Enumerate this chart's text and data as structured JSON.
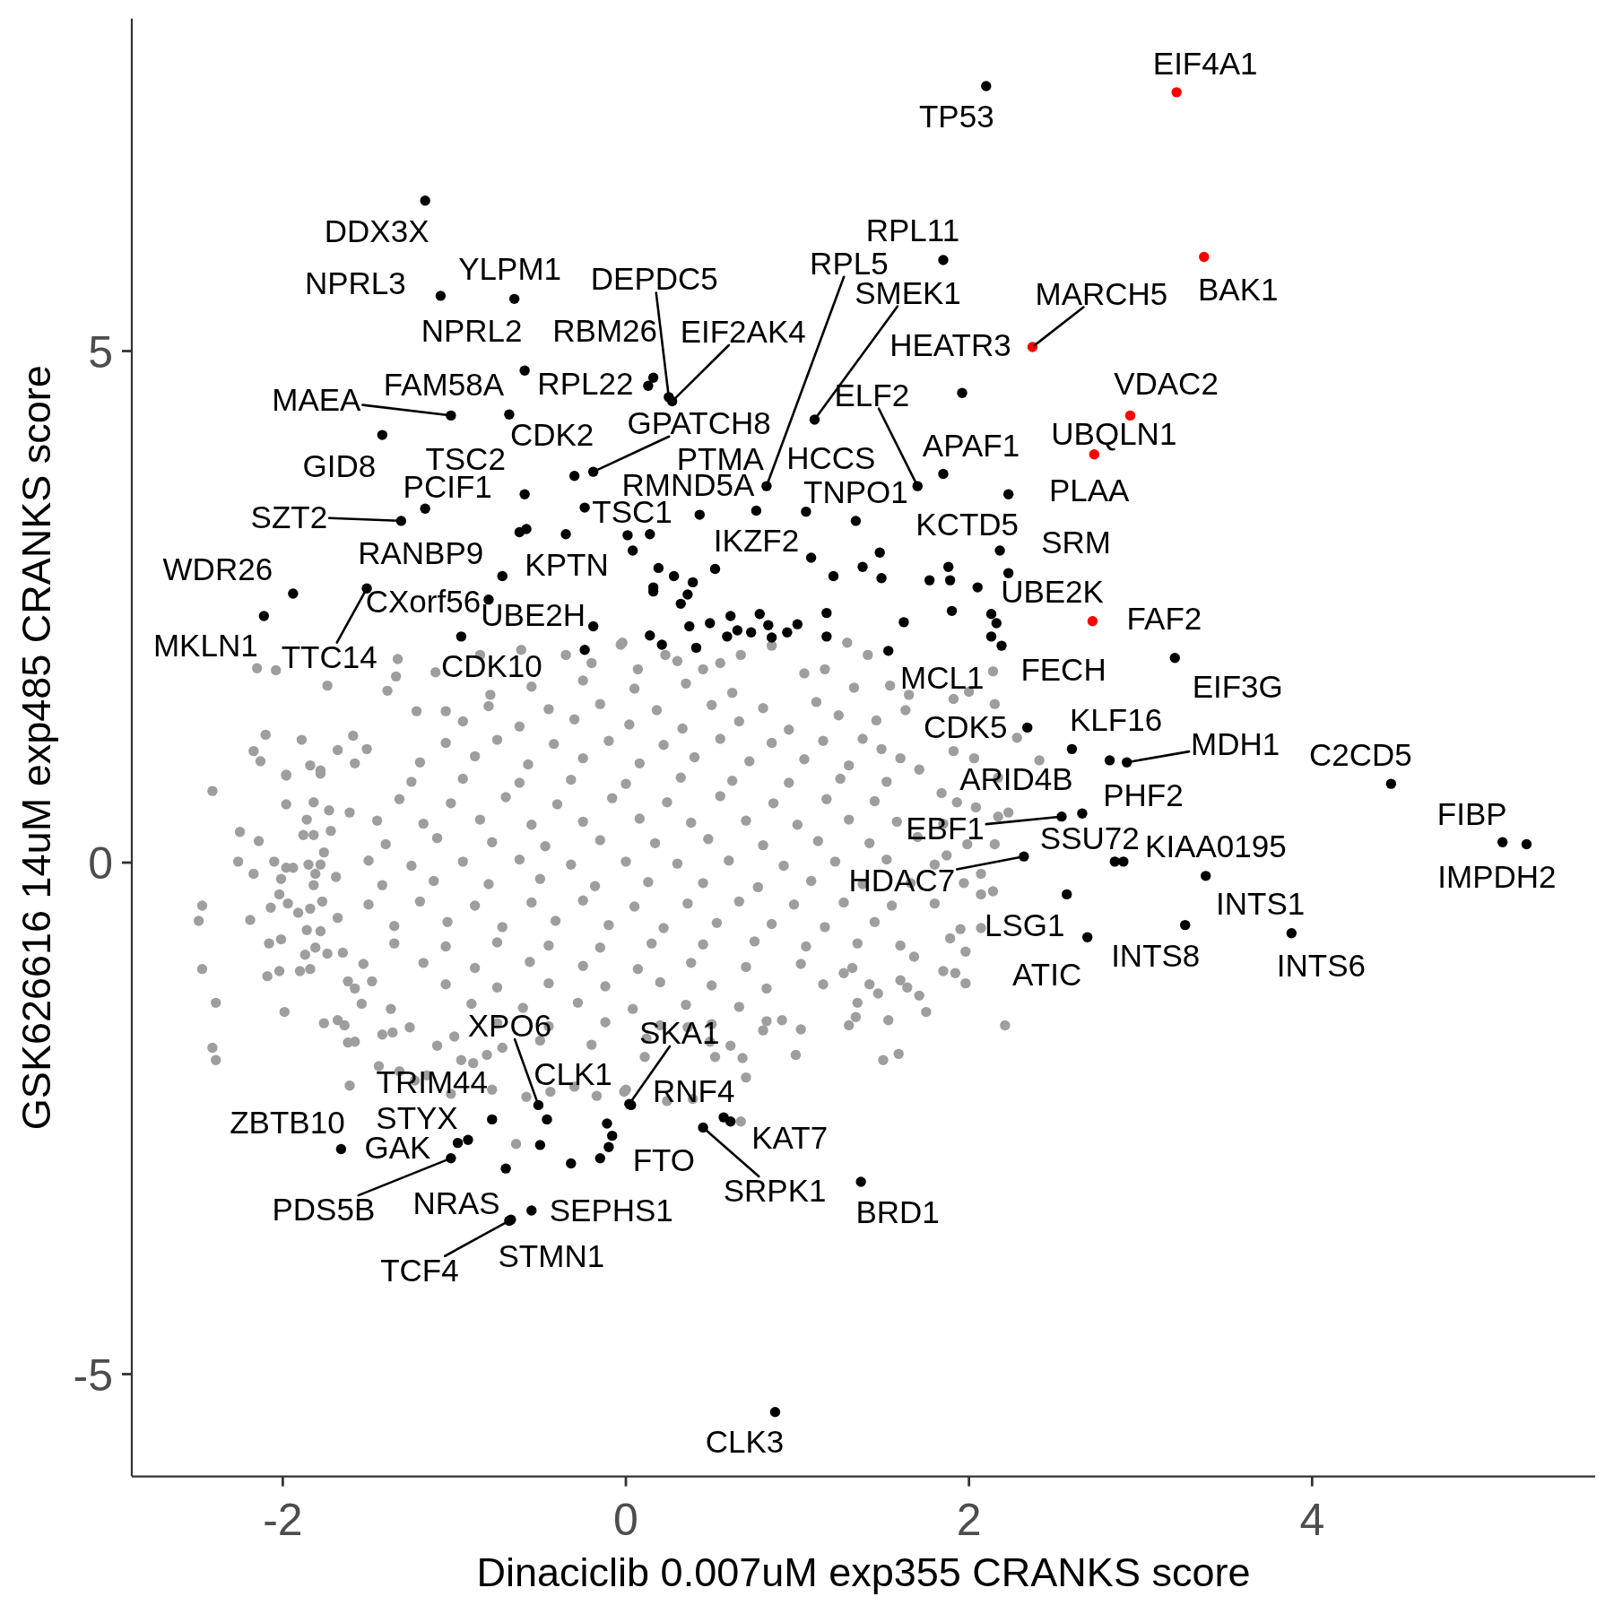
{
  "chart_data": {
    "type": "scatter",
    "xlabel": "Dinaciclib 0.007uM exp355 CRANKS score",
    "ylabel": "GSK626616 14uM exp485 CRANKS score",
    "xlim": [
      -2.88,
      5.65
    ],
    "ylim": [
      -6.0,
      8.25
    ],
    "xticks": [
      -2,
      0,
      2,
      4
    ],
    "yticks": [
      -5,
      0,
      5
    ],
    "marker": "circle",
    "series": [
      {
        "color": "#9e9e9e",
        "x": [
          -2.15,
          -2.04,
          -1.74,
          -1.33,
          -1.34,
          -1.39,
          -1.11,
          -0.03,
          -0.61,
          -0.35,
          -2.1,
          -2.17,
          -2.13,
          -1.59,
          -1.89,
          -1.68,
          -1.84,
          -1.78,
          -1.98,
          -1.51,
          -1.58,
          -1.22,
          -1.05,
          -0.85,
          -0.79,
          -1.98,
          -1.78,
          -2.41,
          -1.98,
          -1.82,
          -1.73,
          -1.86,
          -2.25,
          -2.14,
          -1.88,
          -1.82,
          -1.76,
          -2.26,
          -2.17,
          -2.05,
          -1.98,
          -1.94,
          -2.01,
          -1.85,
          -1.78,
          -1.81,
          -1.82,
          -2.47,
          -2.49,
          -2.19,
          -2.02,
          -2.07,
          -1.97,
          -1.91,
          -1.84,
          -1.77,
          -1.86,
          -1.78,
          -2.08,
          -2.01,
          -1.87,
          -1.81,
          -1.74,
          -1.65,
          -2.47,
          -2.09,
          -2.02,
          -1.9,
          -1.84,
          -2.39,
          -1.99,
          -1.54,
          -1.62,
          -1.58,
          -1.76,
          -1.68,
          -1.64,
          -2.41,
          -2.39,
          -1.62,
          -1.58,
          -1.61,
          -1.42,
          -1.36,
          -1.32,
          -1.44,
          -1.23,
          -1.16,
          -0.96,
          -0.89,
          -1.02,
          -0.81,
          -0.72,
          -0.78,
          -0.64,
          -0.58,
          -0.44,
          -0.3,
          -0.17,
          -0.01,
          -1.72,
          -1.61,
          -1.69,
          -1.68,
          -1.53,
          -1.48,
          -1.37,
          -1.26,
          -1.1,
          -1.0,
          2.23,
          2.17,
          2.15,
          2.14,
          2.07,
          2.07,
          1.95,
          1.89,
          1.98,
          1.85,
          1.92,
          1.98,
          2.21,
          1.68,
          1.6,
          1.64,
          1.71,
          1.75,
          1.53,
          1.35,
          1.34,
          1.3,
          1.5,
          1.59,
          1.42,
          1.47,
          0.99,
          1.02,
          0.68,
          0.7,
          0.67,
          0.52,
          0.61,
          0.24,
          0.39,
          0.11,
          0.0,
          1.27,
          1.32,
          0.91,
          0.8,
          0.36,
          0.49,
          2.17,
          2.04,
          1.93,
          1.84,
          1.99,
          1.87,
          2.07,
          1.97,
          1.29,
          1.41,
          1.33,
          1.54,
          1.65,
          1.63,
          1.91,
          2.0,
          2.15,
          2.14,
          2.28,
          1.91,
          2.03,
          2.41,
          1.46,
          1.16,
          1.04,
          0.85,
          0.67,
          -0.02,
          0.23,
          0.45,
          0.07,
          1.11,
          1.24,
          1.38,
          1.49,
          1.6,
          1.71,
          -0.55,
          -0.25,
          0.05,
          0.35,
          0.62,
          -0.95,
          -0.62,
          -0.3,
          0.02,
          0.33,
          0.66,
          0.95,
          -1.2,
          -0.88,
          -0.57,
          -0.25,
          0.08,
          0.4,
          0.72,
          1.04,
          1.3,
          -1.32,
          -1.02,
          -0.7,
          -0.4,
          -0.08,
          0.24,
          0.55,
          0.86,
          1.17,
          1.45,
          -1.4,
          -1.1,
          -0.78,
          -0.47,
          -0.15,
          0.17,
          0.48,
          0.8,
          1.12,
          1.42,
          1.7,
          -1.42,
          -1.12,
          -0.8,
          -0.5,
          -0.18,
          0.13,
          0.45,
          0.77,
          1.08,
          1.38,
          1.66,
          -1.35,
          -1.04,
          -0.72,
          -0.41,
          -0.1,
          0.22,
          0.53,
          0.85,
          1.16,
          1.45,
          -1.18,
          -0.88,
          -0.56,
          -0.25,
          0.07,
          0.38,
          0.7,
          1.02,
          -0.9,
          -0.6,
          -0.28,
          0.04,
          0.35,
          0.66,
          -0.5,
          -0.2,
          0.12,
          0.3,
          -0.2,
          0.55,
          -0.8,
          -0.45,
          -0.15,
          0.18,
          0.5,
          0.8,
          -1.05,
          -0.75,
          -0.42,
          -0.1,
          0.22,
          0.55,
          0.85,
          1.15,
          -1.25,
          -0.95,
          -0.62,
          -0.32,
          0.0,
          0.32,
          0.62,
          0.95,
          1.25,
          1.52,
          -1.45,
          -1.18,
          -0.85,
          -0.55,
          -0.25,
          0.08,
          0.38,
          0.7,
          1.0,
          1.3,
          1.58,
          1.85,
          -1.5,
          -1.25,
          -0.95,
          -0.62,
          -0.32,
          0.0,
          0.3,
          0.6,
          0.92,
          1.22,
          1.52,
          1.8,
          -1.5,
          -1.2,
          -0.88,
          -0.55,
          -0.25,
          0.05,
          0.36,
          0.66,
          0.98,
          1.27,
          1.55,
          1.8,
          -1.35,
          -1.05,
          -0.75,
          -0.45,
          -0.15,
          0.15,
          0.45,
          0.75,
          1.05,
          1.35,
          1.6,
          -1.05,
          -0.75,
          -0.45,
          -0.12,
          0.2,
          0.5,
          0.82,
          1.15,
          -0.75,
          -0.45,
          -0.12,
          0.2,
          0.5,
          0.82
        ],
        "values": [
          1.9,
          1.88,
          1.73,
          1.99,
          1.82,
          1.68,
          1.86,
          2.13,
          2.08,
          2.03,
          1.25,
          1.09,
          0.99,
          1.24,
          1.2,
          1.1,
          0.95,
          0.9,
          0.86,
          1.11,
          0.97,
          1.48,
          1.48,
          2.03,
          1.64,
          0.85,
          0.87,
          0.7,
          0.57,
          0.59,
          0.51,
          0.42,
          0.3,
          0.21,
          0.27,
          0.27,
          0.1,
          0.01,
          -0.11,
          0.01,
          -0.05,
          -0.05,
          -0.16,
          -0.02,
          -0.02,
          -0.11,
          -0.22,
          -0.42,
          -0.57,
          -0.56,
          -0.31,
          -0.44,
          -0.4,
          -0.49,
          -0.45,
          -0.38,
          -0.66,
          -0.67,
          -0.79,
          -0.75,
          -0.9,
          -0.83,
          -0.89,
          -0.88,
          -1.04,
          -1.11,
          -1.06,
          -1.06,
          -1.04,
          -1.37,
          -1.46,
          -1.38,
          -1.16,
          -1.23,
          -1.57,
          -1.54,
          -1.59,
          -1.81,
          -1.93,
          -1.76,
          -1.75,
          -2.18,
          -1.68,
          -1.66,
          -2.04,
          -1.99,
          -2.13,
          -2.08,
          -1.93,
          -1.96,
          -2.26,
          -1.88,
          -1.81,
          -2.22,
          -2.75,
          -2.29,
          -2.24,
          -2.19,
          -2.28,
          -2.24,
          0.31,
          0.49,
          -0.14,
          -0.54,
          -0.99,
          -1.16,
          -1.43,
          -1.61,
          -1.79,
          -1.7,
          0.49,
          0.45,
          0.18,
          -0.28,
          -0.31,
          -0.64,
          -0.65,
          -0.74,
          -0.87,
          -1.06,
          -1.08,
          -1.18,
          -1.59,
          -0.92,
          -1.15,
          -1.22,
          -1.3,
          -1.46,
          -1.54,
          -1.37,
          -1.51,
          -1.59,
          -1.93,
          -1.87,
          -1.19,
          -1.28,
          -1.88,
          -1.63,
          -1.91,
          -2.1,
          -2.53,
          -1.9,
          -1.79,
          -2.33,
          -2.31,
          -1.9,
          -2.22,
          -1.08,
          -1.03,
          -1.54,
          -1.64,
          -1.61,
          -1.75,
          0.83,
          0.54,
          0.59,
          0.68,
          0.18,
          0.07,
          -0.11,
          -0.2,
          2.15,
          2.03,
          1.71,
          1.73,
          1.64,
          1.49,
          1.6,
          1.67,
          1.55,
          1.87,
          1.22,
          1.09,
          1.02,
          1.0,
          1.39,
          1.89,
          1.85,
          2.12,
          2.03,
          2.15,
          2.03,
          1.89,
          1.89,
          1.57,
          1.44,
          1.21,
          1.11,
          1.02,
          0.91,
          1.72,
          1.78,
          1.7,
          1.75,
          1.66,
          1.38,
          1.33,
          1.4,
          1.35,
          1.31,
          1.38,
          1.3,
          0.98,
          1.04,
          0.96,
          1.02,
          0.97,
          1.03,
          0.99,
          1.01,
          0.95,
          0.62,
          0.58,
          0.64,
          0.57,
          0.63,
          0.59,
          0.65,
          0.58,
          0.62,
          0.6,
          0.18,
          0.24,
          0.2,
          0.16,
          0.22,
          0.19,
          0.23,
          0.17,
          0.21,
          0.19,
          0.25,
          -0.22,
          -0.18,
          -0.21,
          -0.16,
          -0.23,
          -0.19,
          -0.2,
          -0.24,
          -0.18,
          -0.21,
          -0.2,
          -0.62,
          -0.58,
          -0.63,
          -0.57,
          -0.61,
          -0.64,
          -0.59,
          -0.6,
          -0.63,
          -0.58,
          -0.98,
          -1.03,
          -0.97,
          -1.01,
          -1.04,
          -0.98,
          -1.02,
          -0.99,
          -1.38,
          -1.42,
          -1.37,
          -1.43,
          -1.39,
          -1.41,
          -1.74,
          -1.78,
          -1.72,
          1.97,
          1.95,
          1.95,
          1.53,
          1.5,
          1.55,
          1.49,
          1.54,
          1.51,
          1.17,
          1.2,
          1.16,
          1.19,
          1.15,
          1.21,
          1.17,
          1.19,
          0.79,
          0.82,
          0.78,
          0.81,
          0.77,
          0.83,
          0.8,
          0.78,
          0.82,
          0.79,
          0.41,
          0.38,
          0.42,
          0.37,
          0.4,
          0.43,
          0.39,
          0.41,
          0.37,
          0.42,
          0.4,
          0.38,
          0.02,
          -0.03,
          0.01,
          0.03,
          -0.02,
          0.01,
          -0.01,
          0.02,
          -0.03,
          0.01,
          0.03,
          -0.02,
          -0.41,
          -0.38,
          -0.42,
          -0.39,
          -0.37,
          -0.43,
          -0.4,
          -0.38,
          -0.41,
          -0.39,
          -0.42,
          -0.4,
          -0.79,
          -0.82,
          -0.78,
          -0.81,
          -0.83,
          -0.79,
          -0.8,
          -0.77,
          -0.82,
          -0.79,
          -0.81,
          -1.19,
          -1.22,
          -1.18,
          -1.21,
          -1.17,
          -1.2,
          -1.23,
          -1.19,
          -1.57,
          -1.6,
          -1.56,
          -1.59,
          -1.58,
          -1.55
        ]
      },
      {
        "color": "#000000",
        "x": [
          2.1,
          -1.17,
          1.85,
          -1.08,
          -0.65,
          0.25,
          0.82,
          1.1,
          -0.59,
          0.16,
          0.27,
          1.96,
          -0.68,
          0.13,
          0.43,
          1.7,
          -1.02,
          -0.59,
          -0.3,
          -0.19,
          1.85,
          -1.42,
          -1.17,
          0.76,
          1.05,
          2.23,
          -1.31,
          -0.24,
          1.34,
          1.88,
          2.18,
          -0.72,
          -0.35,
          0.52,
          -1.94,
          -0.8,
          2.13,
          -2.11,
          -0.19,
          -1.51,
          -0.96,
          2.19,
          1.53,
          3.2,
          2.34,
          2.6,
          2.82,
          2.92,
          4.46,
          2.66,
          5.11,
          2.54,
          2.9,
          2.85,
          5.25,
          2.32,
          3.38,
          2.57,
          3.26,
          3.88,
          2.69,
          -0.51,
          0.02,
          0.03,
          -0.92,
          -0.46,
          -1.66,
          -0.78,
          0.61,
          -0.15,
          -0.98,
          0.45,
          -1.02,
          -0.7,
          -0.55,
          1.37,
          -0.68,
          -0.67,
          0.87,
          0.01,
          0.04,
          -0.62,
          -0.58,
          -0.24,
          0.14,
          1.08,
          1.38,
          1.49,
          1.21,
          1.48,
          2.23,
          1.89,
          1.77,
          2.05,
          1.9,
          1.62,
          2.16,
          2.13,
          1.17,
          1.17,
          0.19,
          0.28,
          0.39,
          0.16,
          0.16,
          0.36,
          0.32,
          0.49,
          0.61,
          0.78,
          0.83,
          1.0,
          0.94,
          0.85,
          0.73,
          0.65,
          0.59,
          0.14,
          0.21,
          0.41,
          0.37,
          0.57,
          -0.32,
          -0.08,
          -0.1,
          -0.11,
          -0.5
        ],
        "values": [
          7.59,
          6.47,
          5.89,
          5.54,
          5.51,
          4.55,
          3.68,
          4.33,
          4.81,
          4.74,
          4.51,
          4.59,
          4.38,
          4.66,
          3.4,
          3.68,
          4.37,
          3.6,
          3.78,
          3.82,
          3.8,
          4.18,
          3.46,
          3.44,
          3.43,
          3.6,
          3.34,
          3.47,
          3.34,
          2.89,
          3.05,
          2.8,
          3.21,
          2.87,
          2.63,
          2.57,
          2.43,
          2.41,
          2.31,
          2.68,
          2.21,
          2.12,
          2.07,
          2.0,
          1.32,
          1.11,
          1.0,
          0.98,
          0.77,
          0.48,
          0.2,
          0.45,
          0.01,
          0.01,
          0.18,
          0.06,
          -0.13,
          -0.31,
          -0.61,
          -0.69,
          -0.73,
          -2.37,
          -2.36,
          -2.37,
          -2.71,
          -2.51,
          -2.8,
          -2.51,
          -2.53,
          -2.89,
          -2.74,
          -2.59,
          -2.89,
          -2.99,
          -3.4,
          -3.12,
          -3.5,
          -3.49,
          -5.37,
          3.2,
          3.05,
          3.23,
          3.26,
          2.08,
          3.21,
          2.98,
          2.89,
          2.78,
          2.8,
          3.03,
          2.83,
          2.76,
          2.76,
          2.69,
          2.46,
          2.35,
          2.34,
          2.21,
          2.44,
          2.21,
          2.88,
          2.8,
          2.74,
          2.69,
          2.65,
          2.62,
          2.53,
          2.34,
          2.41,
          2.43,
          2.32,
          2.33,
          2.25,
          2.2,
          2.25,
          2.27,
          2.21,
          2.22,
          2.13,
          2.1,
          2.31,
          -2.49,
          -2.94,
          -2.67,
          -2.78,
          -2.55,
          -2.76
        ]
      },
      {
        "color": "#ff0000",
        "x": [
          3.21,
          3.37,
          2.37,
          2.94,
          2.73,
          2.72
        ],
        "values": [
          7.53,
          5.92,
          5.04,
          4.37,
          3.99,
          2.36
        ]
      }
    ],
    "annotations": [
      {
        "text": "EIF4A1",
        "x": 3.21,
        "y": 7.53
      },
      {
        "text": "TP53",
        "x": 2.1,
        "y": 7.59
      },
      {
        "text": "DDX3X",
        "x": -1.17,
        "y": 6.47
      },
      {
        "text": "RPL11",
        "x": 1.85,
        "y": 5.89
      },
      {
        "text": "BAK1",
        "x": 3.37,
        "y": 5.92
      },
      {
        "text": "NPRL3",
        "x": -1.08,
        "y": 5.54
      },
      {
        "text": "YLPM1",
        "x": -0.65,
        "y": 5.51
      },
      {
        "text": "DEPDC5",
        "x": 0.25,
        "y": 4.55
      },
      {
        "text": "RPL5",
        "x": 0.82,
        "y": 3.68
      },
      {
        "text": "SMEK1",
        "x": 1.1,
        "y": 4.33
      },
      {
        "text": "MARCH5",
        "x": 2.37,
        "y": 5.04
      },
      {
        "text": "NPRL2",
        "x": -0.59,
        "y": 4.81
      },
      {
        "text": "RBM26",
        "x": 0.16,
        "y": 4.74
      },
      {
        "text": "EIF2AK4",
        "x": 0.27,
        "y": 4.51
      },
      {
        "text": "HEATR3",
        "x": 1.96,
        "y": 4.59
      },
      {
        "text": "FAM58A",
        "x": -0.68,
        "y": 4.38
      },
      {
        "text": "RPL22",
        "x": 0.13,
        "y": 4.66
      },
      {
        "text": "PTMA",
        "x": 0.43,
        "y": 3.4
      },
      {
        "text": "ELF2",
        "x": 1.7,
        "y": 3.68
      },
      {
        "text": "VDAC2",
        "x": 2.94,
        "y": 4.37
      },
      {
        "text": "MAEA",
        "x": -1.02,
        "y": 4.37
      },
      {
        "text": "TSC2",
        "x": -0.59,
        "y": 3.6
      },
      {
        "text": "CDK2",
        "x": -0.3,
        "y": 3.78
      },
      {
        "text": "GPATCH8",
        "x": -0.19,
        "y": 3.82
      },
      {
        "text": "UBQLN1",
        "x": 2.73,
        "y": 3.99
      },
      {
        "text": "APAF1",
        "x": 1.85,
        "y": 3.8
      },
      {
        "text": "GID8",
        "x": -1.42,
        "y": 4.18
      },
      {
        "text": "PCIF1",
        "x": -1.17,
        "y": 3.46
      },
      {
        "text": "RMND5A",
        "x": 0.76,
        "y": 3.44
      },
      {
        "text": "HCCS",
        "x": 1.05,
        "y": 3.43
      },
      {
        "text": "PLAA",
        "x": 2.23,
        "y": 3.6
      },
      {
        "text": "SZT2",
        "x": -1.31,
        "y": 3.34
      },
      {
        "text": "TSC1",
        "x": -0.24,
        "y": 3.47
      },
      {
        "text": "TNPO1",
        "x": 1.34,
        "y": 3.34
      },
      {
        "text": "KCTD5",
        "x": 1.88,
        "y": 2.89
      },
      {
        "text": "SRM",
        "x": 2.18,
        "y": 3.05
      },
      {
        "text": "RANBP9",
        "x": -0.72,
        "y": 2.8
      },
      {
        "text": "KPTN",
        "x": -0.35,
        "y": 3.21
      },
      {
        "text": "IKZF2",
        "x": 0.52,
        "y": 2.87
      },
      {
        "text": "WDR26",
        "x": -1.94,
        "y": 2.63
      },
      {
        "text": "CXorf56",
        "x": -0.8,
        "y": 2.57
      },
      {
        "text": "UBE2K",
        "x": 2.13,
        "y": 2.43
      },
      {
        "text": "MKLN1",
        "x": -2.11,
        "y": 2.41
      },
      {
        "text": "UBE2H",
        "x": -0.19,
        "y": 2.31
      },
      {
        "text": "FAF2",
        "x": 2.72,
        "y": 2.36
      },
      {
        "text": "TTC14",
        "x": -1.51,
        "y": 2.68
      },
      {
        "text": "CDK10",
        "x": -0.96,
        "y": 2.21
      },
      {
        "text": "FECH",
        "x": 2.19,
        "y": 2.12
      },
      {
        "text": "MCL1",
        "x": 1.53,
        "y": 2.07
      },
      {
        "text": "EIF3G",
        "x": 3.2,
        "y": 2.0
      },
      {
        "text": "CDK5",
        "x": 2.34,
        "y": 1.32
      },
      {
        "text": "KLF16",
        "x": 2.82,
        "y": 1.0
      },
      {
        "text": "MDH1",
        "x": 2.92,
        "y": 0.98
      },
      {
        "text": "C2CD5",
        "x": 4.46,
        "y": 0.77
      },
      {
        "text": "ARID4B",
        "x": 2.6,
        "y": 1.11
      },
      {
        "text": "PHF2",
        "x": 2.66,
        "y": 0.48
      },
      {
        "text": "FIBP",
        "x": 5.11,
        "y": 0.2
      },
      {
        "text": "EBF1",
        "x": 2.54,
        "y": 0.45
      },
      {
        "text": "KIAA0195",
        "x": 2.9,
        "y": 0.01
      },
      {
        "text": "SSU72",
        "x": 2.85,
        "y": 0.01
      },
      {
        "text": "IMPDH2",
        "x": 5.25,
        "y": 0.18
      },
      {
        "text": "HDAC7",
        "x": 2.32,
        "y": 0.06
      },
      {
        "text": "INTS1",
        "x": 3.38,
        "y": -0.13
      },
      {
        "text": "LSG1",
        "x": 2.57,
        "y": -0.31
      },
      {
        "text": "INTS8",
        "x": 3.26,
        "y": -0.61
      },
      {
        "text": "INTS6",
        "x": 3.88,
        "y": -0.69
      },
      {
        "text": "ATIC",
        "x": 2.69,
        "y": -0.73
      },
      {
        "text": "XPO6",
        "x": -0.51,
        "y": -2.37
      },
      {
        "text": "SKA1",
        "x": 0.02,
        "y": -2.36
      },
      {
        "text": "STYX",
        "x": -0.92,
        "y": -2.71
      },
      {
        "text": "CLK1",
        "x": -0.46,
        "y": -2.51
      },
      {
        "text": "RNF4",
        "x": 0.03,
        "y": -2.37
      },
      {
        "text": "ZBTB10",
        "x": -1.66,
        "y": -2.8
      },
      {
        "text": "TRIM44",
        "x": -0.78,
        "y": -2.51
      },
      {
        "text": "KAT7",
        "x": 0.61,
        "y": -2.53
      },
      {
        "text": "FTO",
        "x": -0.15,
        "y": -2.89
      },
      {
        "text": "GAK",
        "x": -0.98,
        "y": -2.74
      },
      {
        "text": "SRPK1",
        "x": 0.45,
        "y": -2.59
      },
      {
        "text": "PDS5B",
        "x": -1.02,
        "y": -2.89
      },
      {
        "text": "NRAS",
        "x": -0.7,
        "y": -2.99
      },
      {
        "text": "SEPHS1",
        "x": -0.55,
        "y": -3.4
      },
      {
        "text": "BRD1",
        "x": 1.37,
        "y": -3.12
      },
      {
        "text": "TCF4",
        "x": -0.68,
        "y": -3.5
      },
      {
        "text": "STMN1",
        "x": -0.67,
        "y": -3.49
      },
      {
        "text": "CLK3",
        "x": 0.87,
        "y": -5.37
      }
    ]
  }
}
